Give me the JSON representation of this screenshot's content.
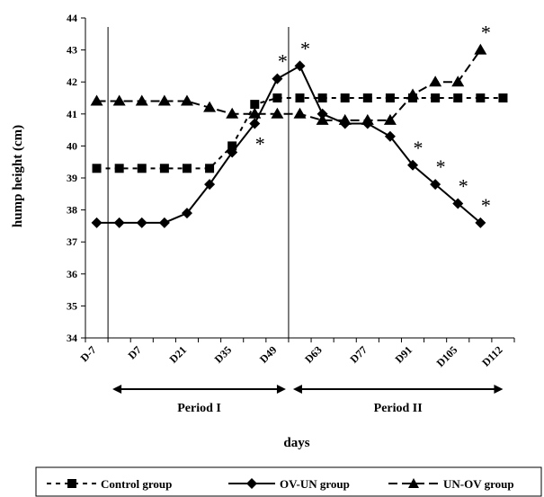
{
  "chart_data": {
    "type": "line",
    "title": "",
    "xlabel": "days",
    "ylabel": "hump height (cm)",
    "ylim": [
      34,
      44
    ],
    "yticks": [
      "34",
      "35",
      "36",
      "37",
      "38",
      "39",
      "40",
      "41",
      "42",
      "43",
      "44"
    ],
    "x_ticks": [
      "D-7",
      "D7",
      "D21",
      "D35",
      "D49",
      "D63",
      "D77",
      "D91",
      "D105",
      "D112"
    ],
    "n_points": 19,
    "dividers_at_index": [
      1,
      9
    ],
    "periods": [
      {
        "label": "Period I",
        "from_index": 1,
        "to_index": 9
      },
      {
        "label": "Period II",
        "from_index": 9,
        "to_index": 18
      }
    ],
    "series": [
      {
        "name": "Control group",
        "marker": "square",
        "line": "dashed",
        "values": [
          39.3,
          39.3,
          39.3,
          39.3,
          39.3,
          39.3,
          40.0,
          41.3,
          41.5,
          41.5,
          41.5,
          41.5,
          41.5,
          41.5,
          41.5,
          41.5,
          41.5,
          41.5,
          41.5
        ]
      },
      {
        "name": "OV-UN group",
        "marker": "diamond",
        "line": "solid",
        "values": [
          37.6,
          37.6,
          37.6,
          37.6,
          37.9,
          38.8,
          39.8,
          40.7,
          42.1,
          42.5,
          41.0,
          40.7,
          40.7,
          40.3,
          39.4,
          38.8,
          38.2,
          37.6,
          null
        ]
      },
      {
        "name": "UN-OV group",
        "marker": "triangle",
        "line": "longdash",
        "values": [
          41.4,
          41.4,
          41.4,
          41.4,
          41.4,
          41.2,
          41.0,
          41.0,
          41.0,
          41.0,
          40.8,
          40.8,
          40.8,
          40.8,
          41.6,
          42.0,
          42.0,
          43.0,
          null
        ]
      }
    ],
    "annotations": [
      {
        "text": "*",
        "point_index": 7,
        "series": "OV-UN group",
        "side": "below"
      },
      {
        "text": "*",
        "point_index": 8,
        "series": "OV-UN group",
        "side": "above"
      },
      {
        "text": "*",
        "point_index": 9,
        "series": "OV-UN group",
        "side": "above"
      },
      {
        "text": "*",
        "point_index": 14,
        "series": "OV-UN group",
        "side": "above"
      },
      {
        "text": "*",
        "point_index": 15,
        "series": "OV-UN group",
        "side": "above"
      },
      {
        "text": "*",
        "point_index": 16,
        "series": "OV-UN group",
        "side": "above"
      },
      {
        "text": "*",
        "point_index": 17,
        "series": "OV-UN group",
        "side": "above"
      },
      {
        "text": "*",
        "point_index": 17,
        "series": "UN-OV group",
        "side": "above"
      }
    ],
    "grid": false,
    "legend_position": "bottom",
    "colors": {
      "line": "#000000",
      "background": "#ffffff"
    }
  }
}
